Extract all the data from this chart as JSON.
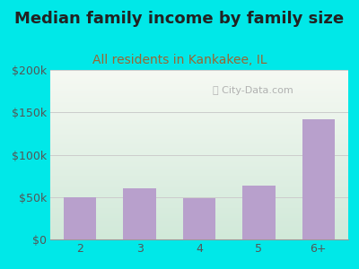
{
  "title": "Median family income by family size",
  "subtitle": "All residents in Kankakee, IL",
  "categories": [
    "2",
    "3",
    "4",
    "5",
    "6+"
  ],
  "values": [
    50000,
    60000,
    49000,
    63000,
    142000
  ],
  "bar_color": "#b8a0cc",
  "ylim": [
    0,
    200000
  ],
  "yticks": [
    0,
    50000,
    100000,
    150000,
    200000
  ],
  "ytick_labels": [
    "$0",
    "$50k",
    "$100k",
    "$150k",
    "$200k"
  ],
  "title_fontsize": 13,
  "subtitle_fontsize": 10,
  "title_color": "#222222",
  "subtitle_color": "#996633",
  "background_outer": "#00e8e8",
  "bg_top_color": "#e8f5ee",
  "bg_bottom_color": "#d0ecd8",
  "watermark": "City-Data.com",
  "watermark_color": "#aaaaaa",
  "grid_color": "#cccccc",
  "tick_label_color": "#555555",
  "xtick_fontsize": 9,
  "ytick_fontsize": 9
}
